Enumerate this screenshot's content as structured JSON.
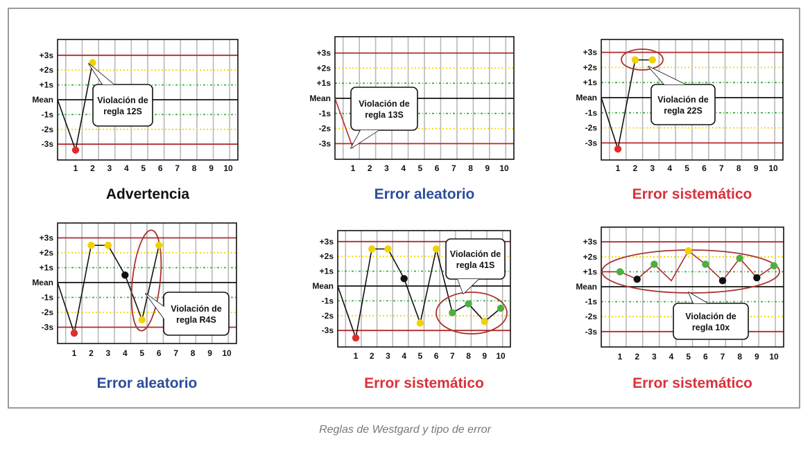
{
  "caption": "Reglas de Westgard y tipo de error",
  "colors": {
    "limit3s": "#b0282d",
    "line2s": "#f2d600",
    "line1s": "#3aaf3a",
    "mean": "#111111",
    "vgrid": "#b8b8b8",
    "point_red": "#e32b2b",
    "point_yellow": "#f1d200",
    "point_black": "#111111",
    "point_green": "#4bb040",
    "title_black": "#111111",
    "title_blue": "#2b4d9a",
    "title_red": "#d9313a",
    "ellipse": "#a8322e"
  },
  "chart_data": [
    {
      "type": "line",
      "title": "Advertencia",
      "title_color": "black",
      "y_tick_labels": [
        "+3s",
        "+2s",
        "+1s",
        "Mean",
        "-1s",
        "-2s",
        "-3s"
      ],
      "x": [
        1,
        2,
        3,
        4,
        5,
        6,
        7,
        8,
        9,
        10
      ],
      "start_y": 0,
      "points": [
        {
          "x": 1,
          "y": -3.4,
          "color": "red"
        },
        {
          "x": 2,
          "y": 2.5,
          "color": "yellow"
        }
      ],
      "segment_color": "black",
      "annotation": {
        "text": [
          "Violación de",
          "regla 12S"
        ]
      }
    },
    {
      "type": "line",
      "title": "Error aleatorio",
      "title_color": "blue",
      "y_tick_labels": [
        "+3s",
        "+2s",
        "+1s",
        "Mean",
        "-1s",
        "-2s",
        "-3s"
      ],
      "x": [
        1,
        2,
        3,
        4,
        5,
        6,
        7,
        8,
        9,
        10
      ],
      "start_y": 0,
      "points": [
        {
          "x": 1,
          "y": -3.3,
          "color": "none"
        }
      ],
      "segment_color": "red",
      "annotation": {
        "text": [
          "Violación de",
          "regla 13S"
        ]
      }
    },
    {
      "type": "line",
      "title": "Error sistemático",
      "title_color": "red",
      "y_tick_labels": [
        "+3s",
        "+2s",
        "+1s",
        "Mean",
        "-1s",
        "-2s",
        "-3s"
      ],
      "x": [
        1,
        2,
        3,
        4,
        5,
        6,
        7,
        8,
        9,
        10
      ],
      "start_y": 0,
      "points": [
        {
          "x": 1,
          "y": -3.4,
          "color": "red"
        },
        {
          "x": 2,
          "y": 2.5,
          "color": "yellow"
        },
        {
          "x": 3,
          "y": 2.5,
          "color": "yellow"
        }
      ],
      "segment_color": "black",
      "highlight_points": [
        2,
        3
      ],
      "annotation": {
        "text": [
          "Violación de",
          "regla 22S"
        ]
      }
    },
    {
      "type": "line",
      "title": "Error aleatorio",
      "title_color": "blue",
      "y_tick_labels": [
        "+3s",
        "+2s",
        "+1s",
        "Mean",
        "-1s",
        "-2s",
        "-3s"
      ],
      "x": [
        1,
        2,
        3,
        4,
        5,
        6,
        7,
        8,
        9,
        10
      ],
      "start_y": 0,
      "points": [
        {
          "x": 1,
          "y": -3.4,
          "color": "red"
        },
        {
          "x": 2,
          "y": 2.5,
          "color": "yellow"
        },
        {
          "x": 3,
          "y": 2.5,
          "color": "yellow"
        },
        {
          "x": 4,
          "y": 0.5,
          "color": "black"
        },
        {
          "x": 5,
          "y": -2.5,
          "color": "yellow"
        },
        {
          "x": 6,
          "y": 2.5,
          "color": "yellow"
        }
      ],
      "segment_color": "black",
      "highlight_points": [
        5,
        6
      ],
      "annotation": {
        "text": [
          "Violación de",
          "regla R4S"
        ]
      }
    },
    {
      "type": "line",
      "title": "Error sistemático",
      "title_color": "red",
      "y_tick_labels": [
        "+3s",
        "+2s",
        "+1s",
        "Mean",
        "-1s",
        "-2s",
        "-3s"
      ],
      "x": [
        1,
        2,
        3,
        4,
        5,
        6,
        7,
        8,
        9,
        10
      ],
      "start_y": 0,
      "points": [
        {
          "x": 1,
          "y": -3.5,
          "color": "red"
        },
        {
          "x": 2,
          "y": 2.5,
          "color": "yellow"
        },
        {
          "x": 3,
          "y": 2.5,
          "color": "yellow"
        },
        {
          "x": 4,
          "y": 0.5,
          "color": "black"
        },
        {
          "x": 5,
          "y": -2.5,
          "color": "yellow"
        },
        {
          "x": 6,
          "y": 2.5,
          "color": "yellow"
        },
        {
          "x": 7,
          "y": -1.8,
          "color": "green"
        },
        {
          "x": 8,
          "y": -1.2,
          "color": "green"
        },
        {
          "x": 9,
          "y": -2.4,
          "color": "yellow"
        },
        {
          "x": 10,
          "y": -1.5,
          "color": "green"
        }
      ],
      "segment_color": "black",
      "highlight_points": [
        7,
        8,
        9,
        10
      ],
      "annotation": {
        "text": [
          "Violación de",
          "regla 41S"
        ]
      }
    },
    {
      "type": "line",
      "title": "Error sistemático",
      "title_color": "red",
      "y_tick_labels": [
        "+3s",
        "+2s",
        "+1s",
        "Mean",
        "-1s",
        "-2s",
        "-3s"
      ],
      "x": [
        1,
        2,
        3,
        4,
        5,
        6,
        7,
        8,
        9,
        10
      ],
      "start_y": 1,
      "points": [
        {
          "x": 1,
          "y": 1.0,
          "color": "green"
        },
        {
          "x": 2,
          "y": 0.5,
          "color": "black"
        },
        {
          "x": 3,
          "y": 1.5,
          "color": "green"
        },
        {
          "x": 4,
          "y": 0.4,
          "color": "none"
        },
        {
          "x": 5,
          "y": 2.4,
          "color": "yellow"
        },
        {
          "x": 6,
          "y": 1.5,
          "color": "green"
        },
        {
          "x": 7,
          "y": 0.4,
          "color": "black"
        },
        {
          "x": 8,
          "y": 1.9,
          "color": "green"
        },
        {
          "x": 9,
          "y": 0.6,
          "color": "black"
        },
        {
          "x": 10,
          "y": 1.4,
          "color": "green"
        }
      ],
      "segment_color": "red",
      "highlight_points": [
        1,
        2,
        3,
        4,
        5,
        6,
        7,
        8,
        9,
        10
      ],
      "annotation": {
        "text": [
          "Violación de",
          "regla 10x"
        ]
      }
    }
  ]
}
